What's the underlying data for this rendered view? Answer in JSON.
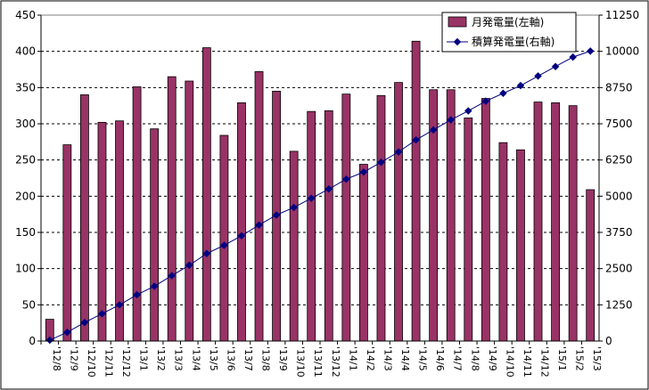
{
  "chart_data": {
    "type": "bar",
    "title": "",
    "xlabel": "",
    "ylabel": "",
    "categories": [
      "'12/8",
      "'12/9",
      "'12/10",
      "'12/11",
      "'12/12",
      "'13/1",
      "'13/2",
      "'13/3",
      "'13/4",
      "'13/5",
      "'13/6",
      "'13/7",
      "'13/8",
      "'13/9",
      "'13/10",
      "'13/11",
      "'13/12",
      "'14/1",
      "'14/2",
      "'14/3",
      "'14/4",
      "'14/5",
      "'14/6",
      "'14/7",
      "'14/8",
      "'14/9",
      "'14/10",
      "'14/11",
      "'14/12",
      "'15/1",
      "'15/2",
      "'15/3"
    ],
    "series": [
      {
        "name": "月発電量(左軸)",
        "type": "bar",
        "axis": "left",
        "color": "#993366",
        "values": [
          30,
          271,
          340,
          302,
          304,
          351,
          293,
          365,
          359,
          405,
          284,
          329,
          372,
          345,
          262,
          317,
          318,
          341,
          244,
          339,
          357,
          414,
          347,
          347,
          308,
          335,
          274,
          264,
          330,
          329,
          325,
          209
        ]
      },
      {
        "name": "積算発電量(右軸)",
        "type": "line",
        "axis": "right",
        "color": "#000080",
        "values": [
          30,
          301,
          641,
          943,
          1247,
          1598,
          1891,
          2256,
          2615,
          3020,
          3304,
          3633,
          4005,
          4350,
          4612,
          4929,
          5247,
          5588,
          5832,
          6171,
          6528,
          6942,
          7289,
          7636,
          7944,
          8279,
          8553,
          8817,
          9147,
          9476,
          9801,
          10010
        ]
      }
    ],
    "left_axis": {
      "min": 0,
      "max": 450,
      "ticks": [
        "0",
        "50",
        "100",
        "150",
        "200",
        "250",
        "300",
        "350",
        "400",
        "450"
      ]
    },
    "right_axis": {
      "min": 0,
      "max": 11250,
      "ticks": [
        "0",
        "1250",
        "2500",
        "3750",
        "5000",
        "6250",
        "7500",
        "8750",
        "10000",
        "11250"
      ]
    },
    "grid": "horizontal dashed",
    "legend_position": "top-right"
  }
}
